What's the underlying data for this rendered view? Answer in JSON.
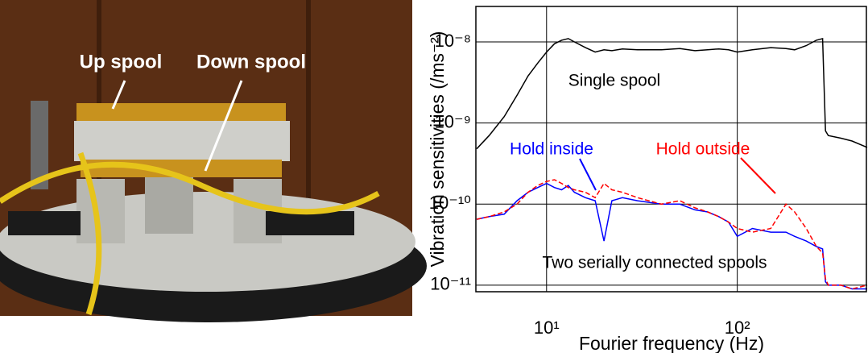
{
  "photo_labels": [
    "Up spool",
    "Down spool"
  ],
  "chart_data": {
    "type": "line",
    "xlabel": "Fourier frequency (Hz)",
    "ylabel": "Vibration sensitivities (/ms⁻²)",
    "log_x": true,
    "log_y": true,
    "grid": true,
    "xlim": [
      4.26,
      480
    ],
    "ylim": [
      8.3e-12,
      2.74e-08
    ],
    "xticks": [
      {
        "value": 10,
        "label": "10¹"
      },
      {
        "value": 100,
        "label": "10²"
      }
    ],
    "yticks": [
      {
        "value": 1e-11,
        "label": "10⁻¹¹"
      },
      {
        "value": 1e-10,
        "label": "10⁻¹⁰"
      },
      {
        "value": 1e-09,
        "label": "10⁻⁹"
      },
      {
        "value": 1e-08,
        "label": "10⁻⁸"
      }
    ],
    "annotations": [
      "Two serially connected spools"
    ],
    "x": [
      4.3,
      5,
      6,
      7,
      8,
      9,
      10,
      11,
      12,
      13,
      14,
      16,
      18,
      20,
      22,
      25,
      30,
      40,
      50,
      60,
      70,
      80,
      90,
      100,
      120,
      150,
      180,
      200,
      230,
      260,
      280,
      290,
      300,
      350,
      400,
      480
    ],
    "series": [
      {
        "name": "Single spool",
        "color": "#000000",
        "dash": false,
        "values": [
          4.8e-10,
          7e-10,
          1.2e-09,
          2.2e-09,
          3.8e-09,
          5.5e-09,
          7.5e-09,
          9.5e-09,
          1.05e-08,
          1.1e-08,
          1e-08,
          8.5e-09,
          7.5e-09,
          8e-09,
          7.8e-09,
          8.2e-09,
          8e-09,
          8e-09,
          8.3e-09,
          7.8e-09,
          8e-09,
          8.2e-09,
          8e-09,
          7.5e-09,
          8e-09,
          8.5e-09,
          8.3e-09,
          8e-09,
          9e-09,
          1.05e-08,
          1.1e-08,
          8e-10,
          7e-10,
          6.5e-10,
          6e-10,
          5e-10
        ]
      },
      {
        "name": "Hold inside",
        "color": "#0000ff",
        "dash": false,
        "values": [
          6.5e-11,
          7e-11,
          7.5e-11,
          1.1e-10,
          1.4e-10,
          1.6e-10,
          1.8e-10,
          1.6e-10,
          1.5e-10,
          1.7e-10,
          1.4e-10,
          1.2e-10,
          1.1e-10,
          3.5e-11,
          1.1e-10,
          1.2e-10,
          1.1e-10,
          1e-10,
          1e-10,
          8.5e-11,
          8e-11,
          7e-11,
          6e-11,
          4e-11,
          5e-11,
          4.5e-11,
          4.5e-11,
          4e-11,
          3.5e-11,
          3e-11,
          2.8e-11,
          1.1e-11,
          1e-11,
          1e-11,
          9e-12,
          9e-12
        ]
      },
      {
        "name": "Hold outside",
        "color": "#ff0000",
        "dash": true,
        "values": [
          6.5e-11,
          7e-11,
          8e-11,
          1e-10,
          1.4e-10,
          1.7e-10,
          1.9e-10,
          2e-10,
          1.8e-10,
          1.6e-10,
          1.5e-10,
          1.4e-10,
          1.2e-10,
          1.8e-10,
          1.5e-10,
          1.4e-10,
          1.2e-10,
          1e-10,
          1.1e-10,
          9e-11,
          8e-11,
          7e-11,
          6e-11,
          5e-11,
          4.5e-11,
          5e-11,
          1e-10,
          8e-11,
          5e-11,
          3e-11,
          2.5e-11,
          1.2e-11,
          1e-11,
          1e-11,
          9e-12,
          1e-11
        ]
      }
    ]
  }
}
